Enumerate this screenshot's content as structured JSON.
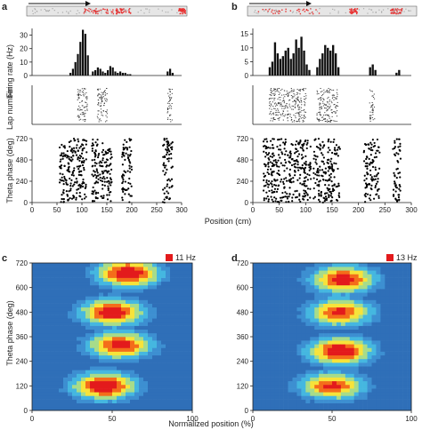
{
  "figure": {
    "panel_letters": [
      "a",
      "b",
      "c",
      "d"
    ],
    "xlabel_top": "Position (cm)",
    "xlabel_bottom": "Normalized position (%)"
  },
  "colors": {
    "spike_red": "#e83030",
    "track_gray": "#c8c8c8",
    "heat_low": "#2f6fb8",
    "heat_mid": "#45b7e0",
    "heat_high": "#f7e33a",
    "heat_peak": "#e31a1c"
  },
  "chart_data": [
    {
      "panel": "a",
      "type": "bar",
      "title": "",
      "ylabel": "Firing rate (Hz)",
      "xlabel": "Position (cm)",
      "xlim": [
        0,
        300
      ],
      "x_ticks": [],
      "y_ticks": [
        0,
        10,
        20,
        30
      ],
      "ylim": [
        0,
        35
      ],
      "bin_width": 5,
      "x": [
        75,
        80,
        85,
        90,
        95,
        100,
        105,
        110,
        120,
        125,
        130,
        135,
        140,
        145,
        150,
        155,
        160,
        165,
        170,
        175,
        180,
        185,
        190,
        195,
        270,
        275,
        280
      ],
      "values": [
        2,
        5,
        10,
        16,
        25,
        34,
        31,
        15,
        3,
        4,
        6,
        5,
        3,
        2,
        4,
        7,
        6,
        3,
        2,
        3,
        2,
        2,
        1,
        1,
        3,
        5,
        2
      ]
    },
    {
      "panel": "b",
      "type": "bar",
      "title": "",
      "ylabel": "",
      "xlabel": "Position (cm)",
      "xlim": [
        0,
        300
      ],
      "x_ticks": [],
      "y_ticks": [
        0,
        5,
        10,
        15
      ],
      "ylim": [
        0,
        17
      ],
      "bin_width": 5,
      "x": [
        30,
        35,
        40,
        45,
        50,
        55,
        60,
        65,
        70,
        75,
        80,
        85,
        90,
        95,
        100,
        105,
        120,
        125,
        130,
        135,
        140,
        145,
        150,
        155,
        160,
        220,
        225,
        230,
        270,
        275
      ],
      "values": [
        3,
        5,
        12,
        8,
        6,
        7,
        9,
        10,
        6,
        8,
        13,
        10,
        14,
        9,
        4,
        2,
        3,
        6,
        8,
        11,
        10,
        9,
        11,
        8,
        3,
        3,
        4,
        2,
        1,
        2
      ]
    },
    {
      "panel": "a",
      "type": "scatter",
      "ylabel": "Lap number",
      "xlabel": "Position (cm)",
      "xlim": [
        0,
        300
      ],
      "description_clusters_cm": [
        [
          90,
          110
        ],
        [
          130,
          150
        ],
        [
          270,
          280
        ]
      ]
    },
    {
      "panel": "b",
      "type": "scatter",
      "ylabel": "",
      "xlabel": "Position (cm)",
      "xlim": [
        0,
        300
      ],
      "description_clusters_cm": [
        [
          30,
          100
        ],
        [
          120,
          160
        ],
        [
          220,
          230
        ]
      ]
    },
    {
      "panel": "a",
      "type": "scatter",
      "ylabel": "Theta phase (deg)",
      "xlabel": "Position (cm)",
      "xlim": [
        0,
        300
      ],
      "ylim": [
        0,
        720
      ],
      "x_ticks": [
        0,
        50,
        100,
        150,
        200,
        250,
        300
      ],
      "y_ticks": [
        0,
        240,
        480,
        720
      ],
      "clusters_cm": [
        [
          55,
          110
        ],
        [
          120,
          160
        ],
        [
          180,
          200
        ],
        [
          262,
          282
        ]
      ]
    },
    {
      "panel": "b",
      "type": "scatter",
      "ylabel": "",
      "xlabel": "Position (cm)",
      "xlim": [
        0,
        300
      ],
      "ylim": [
        0,
        720
      ],
      "x_ticks": [
        0,
        50,
        100,
        150,
        200,
        250,
        300
      ],
      "y_ticks": [
        0,
        240,
        480,
        720
      ],
      "clusters_cm": [
        [
          20,
          110
        ],
        [
          115,
          165
        ],
        [
          210,
          240
        ],
        [
          265,
          280
        ]
      ]
    },
    {
      "panel": "c",
      "type": "heatmap",
      "legend_label": "11 Hz",
      "ylabel": "Theta phase (deg)",
      "xlabel": "Normalized position (%)",
      "xlim": [
        0,
        100
      ],
      "ylim": [
        0,
        720
      ],
      "x_ticks": [
        0,
        50,
        100
      ],
      "y_ticks": [
        0,
        120,
        240,
        360,
        480,
        600,
        720
      ],
      "peaks": [
        {
          "x": 45,
          "y": 120,
          "intensity": 1.0
        },
        {
          "x": 55,
          "y": 320,
          "intensity": 0.9
        },
        {
          "x": 50,
          "y": 480,
          "intensity": 0.95
        },
        {
          "x": 60,
          "y": 670,
          "intensity": 1.0
        }
      ]
    },
    {
      "panel": "d",
      "type": "heatmap",
      "legend_label": "13 Hz",
      "ylabel": "",
      "xlabel": "Normalized position (%)",
      "xlim": [
        0,
        100
      ],
      "ylim": [
        0,
        720
      ],
      "x_ticks": [
        0,
        50,
        100
      ],
      "y_ticks": [
        0,
        120,
        240,
        360,
        480,
        600,
        720
      ],
      "peaks": [
        {
          "x": 50,
          "y": 120,
          "intensity": 0.85
        },
        {
          "x": 55,
          "y": 290,
          "intensity": 1.0
        },
        {
          "x": 55,
          "y": 480,
          "intensity": 0.85
        },
        {
          "x": 57,
          "y": 640,
          "intensity": 0.95
        }
      ]
    }
  ]
}
